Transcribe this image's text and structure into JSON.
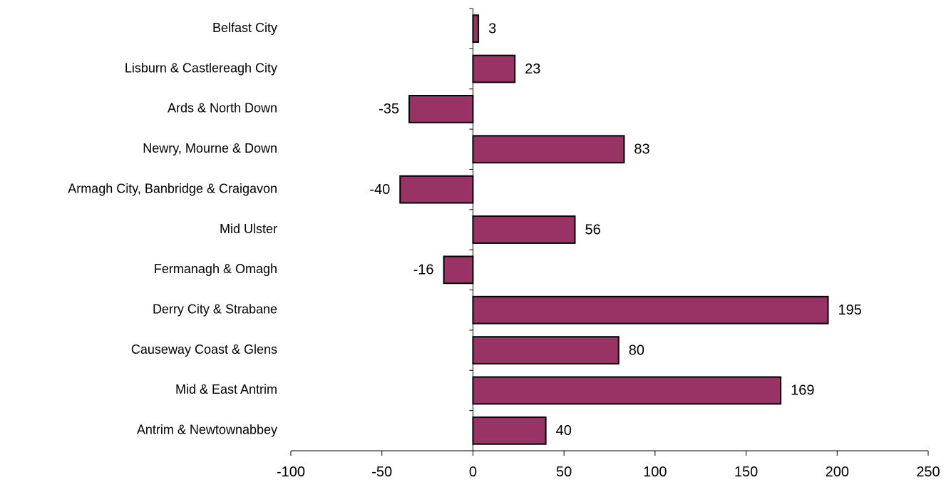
{
  "chart_data": {
    "type": "bar",
    "orientation": "horizontal",
    "categories": [
      "Belfast City",
      "Lisburn & Castlereagh City",
      "Ards & North Down",
      "Newry, Mourne & Down",
      "Armagh City, Banbridge & Craigavon",
      "Mid Ulster",
      "Fermanagh & Omagh",
      "Derry City & Strabane",
      "Causeway Coast & Glens",
      "Mid & East Antrim",
      "Antrim & Newtownabbey"
    ],
    "values": [
      3,
      23,
      -35,
      83,
      -40,
      56,
      -16,
      195,
      80,
      169,
      40
    ],
    "xlim": [
      -100,
      250
    ],
    "xticks": [
      -100,
      -50,
      0,
      50,
      100,
      150,
      200,
      250
    ],
    "xtick_labels": [
      "-100",
      "-50",
      "0",
      "50",
      "100",
      "150",
      "200",
      "250"
    ],
    "bar_color": "#993366",
    "grid": false,
    "legend": "none"
  }
}
